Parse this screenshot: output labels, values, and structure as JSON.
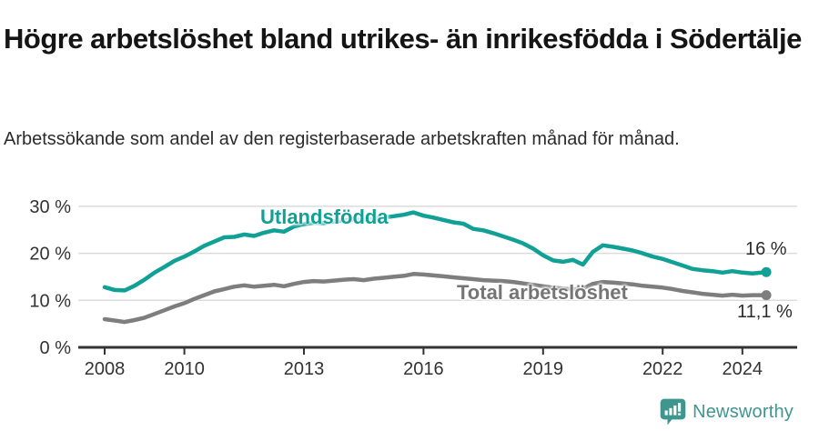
{
  "header": {
    "title": "Högre arbetslöshet bland utrikes- än inrikesfödda i Södertälje",
    "subtitle": "Arbetssökande som andel av den registerbaserade arbetskraften månad för månad."
  },
  "chart_data": {
    "type": "line",
    "title": "Högre arbetslöshet bland utrikes- än inrikesfödda i Södertälje",
    "subtitle": "Arbetssökande som andel av den registerbaserade arbetskraften månad för månad.",
    "xlabel": "",
    "ylabel": "",
    "grid": "horizontal",
    "legend_position": "inline-labels",
    "x_axis": {
      "ticks": [
        2008,
        2010,
        2013,
        2016,
        2019,
        2022,
        2024
      ],
      "range": [
        2008,
        2025.4
      ]
    },
    "y_axis": {
      "tick_values": [
        0,
        10,
        20,
        30
      ],
      "tick_labels": [
        "0 %",
        "10 %",
        "20 %",
        "30 %"
      ],
      "range": [
        0,
        30
      ],
      "unit": "%"
    },
    "colors": {
      "series0": "#11a096",
      "series1": "#7e7e7e",
      "axis": "#333333",
      "gridline": "#dcdcdc"
    },
    "series": [
      {
        "name": "Utlandsfödda",
        "color": "#11a096",
        "end_label": "16 %",
        "end_value": 16.0,
        "points": [
          [
            2008.0,
            12.8
          ],
          [
            2008.25,
            12.2
          ],
          [
            2008.5,
            12.1
          ],
          [
            2008.75,
            13.1
          ],
          [
            2009.0,
            14.4
          ],
          [
            2009.25,
            15.9
          ],
          [
            2009.5,
            17.1
          ],
          [
            2009.75,
            18.4
          ],
          [
            2010.0,
            19.3
          ],
          [
            2010.25,
            20.4
          ],
          [
            2010.5,
            21.6
          ],
          [
            2010.75,
            22.5
          ],
          [
            2011.0,
            23.4
          ],
          [
            2011.25,
            23.5
          ],
          [
            2011.5,
            24.0
          ],
          [
            2011.75,
            23.7
          ],
          [
            2012.0,
            24.4
          ],
          [
            2012.25,
            24.9
          ],
          [
            2012.5,
            24.6
          ],
          [
            2012.75,
            25.7
          ],
          [
            2013.0,
            26.2
          ],
          [
            2013.25,
            26.5
          ],
          [
            2013.5,
            26.4
          ],
          [
            2013.75,
            26.8
          ],
          [
            2014.0,
            27.0
          ],
          [
            2014.25,
            27.2
          ],
          [
            2014.5,
            27.1
          ],
          [
            2014.75,
            27.4
          ],
          [
            2015.0,
            27.6
          ],
          [
            2015.25,
            27.9
          ],
          [
            2015.5,
            28.2
          ],
          [
            2015.75,
            28.7
          ],
          [
            2016.0,
            28.0
          ],
          [
            2016.25,
            27.6
          ],
          [
            2016.5,
            27.1
          ],
          [
            2016.75,
            26.6
          ],
          [
            2017.0,
            26.3
          ],
          [
            2017.25,
            25.2
          ],
          [
            2017.5,
            24.9
          ],
          [
            2017.75,
            24.3
          ],
          [
            2018.0,
            23.6
          ],
          [
            2018.25,
            22.9
          ],
          [
            2018.5,
            22.1
          ],
          [
            2018.75,
            21.0
          ],
          [
            2019.0,
            19.6
          ],
          [
            2019.25,
            18.5
          ],
          [
            2019.5,
            18.2
          ],
          [
            2019.75,
            18.6
          ],
          [
            2020.0,
            17.6
          ],
          [
            2020.25,
            20.3
          ],
          [
            2020.5,
            21.7
          ],
          [
            2020.75,
            21.4
          ],
          [
            2021.0,
            21.0
          ],
          [
            2021.25,
            20.6
          ],
          [
            2021.5,
            20.0
          ],
          [
            2021.75,
            19.3
          ],
          [
            2022.0,
            18.8
          ],
          [
            2022.25,
            18.1
          ],
          [
            2022.5,
            17.4
          ],
          [
            2022.75,
            16.7
          ],
          [
            2023.0,
            16.4
          ],
          [
            2023.25,
            16.2
          ],
          [
            2023.5,
            15.9
          ],
          [
            2023.75,
            16.2
          ],
          [
            2024.0,
            15.9
          ],
          [
            2024.25,
            15.7
          ],
          [
            2024.6,
            16.0
          ]
        ]
      },
      {
        "name": "Total arbetslöshet",
        "color": "#7e7e7e",
        "end_label": "11,1 %",
        "end_value": 11.1,
        "points": [
          [
            2008.0,
            6.0
          ],
          [
            2008.25,
            5.7
          ],
          [
            2008.5,
            5.4
          ],
          [
            2008.75,
            5.8
          ],
          [
            2009.0,
            6.3
          ],
          [
            2009.25,
            7.1
          ],
          [
            2009.5,
            7.9
          ],
          [
            2009.75,
            8.7
          ],
          [
            2010.0,
            9.4
          ],
          [
            2010.25,
            10.3
          ],
          [
            2010.5,
            11.1
          ],
          [
            2010.75,
            11.9
          ],
          [
            2011.0,
            12.4
          ],
          [
            2011.25,
            12.9
          ],
          [
            2011.5,
            13.2
          ],
          [
            2011.75,
            12.9
          ],
          [
            2012.0,
            13.1
          ],
          [
            2012.25,
            13.3
          ],
          [
            2012.5,
            13.0
          ],
          [
            2012.75,
            13.5
          ],
          [
            2013.0,
            13.9
          ],
          [
            2013.25,
            14.1
          ],
          [
            2013.5,
            14.0
          ],
          [
            2013.75,
            14.2
          ],
          [
            2014.0,
            14.4
          ],
          [
            2014.25,
            14.5
          ],
          [
            2014.5,
            14.3
          ],
          [
            2014.75,
            14.6
          ],
          [
            2015.0,
            14.8
          ],
          [
            2015.25,
            15.0
          ],
          [
            2015.5,
            15.2
          ],
          [
            2015.75,
            15.6
          ],
          [
            2016.0,
            15.5
          ],
          [
            2016.25,
            15.3
          ],
          [
            2016.5,
            15.1
          ],
          [
            2016.75,
            14.9
          ],
          [
            2017.0,
            14.7
          ],
          [
            2017.25,
            14.5
          ],
          [
            2017.5,
            14.3
          ],
          [
            2017.75,
            14.2
          ],
          [
            2018.0,
            14.1
          ],
          [
            2018.25,
            13.9
          ],
          [
            2018.5,
            13.6
          ],
          [
            2018.75,
            13.3
          ],
          [
            2019.0,
            13.0
          ],
          [
            2019.25,
            12.7
          ],
          [
            2019.5,
            12.5
          ],
          [
            2019.75,
            12.3
          ],
          [
            2020.0,
            12.5
          ],
          [
            2020.25,
            13.5
          ],
          [
            2020.5,
            13.9
          ],
          [
            2020.75,
            13.8
          ],
          [
            2021.0,
            13.6
          ],
          [
            2021.25,
            13.4
          ],
          [
            2021.5,
            13.1
          ],
          [
            2021.75,
            12.9
          ],
          [
            2022.0,
            12.7
          ],
          [
            2022.25,
            12.4
          ],
          [
            2022.5,
            12.0
          ],
          [
            2022.75,
            11.7
          ],
          [
            2023.0,
            11.4
          ],
          [
            2023.25,
            11.2
          ],
          [
            2023.5,
            11.0
          ],
          [
            2023.75,
            11.2
          ],
          [
            2024.0,
            11.0
          ],
          [
            2024.25,
            11.1
          ],
          [
            2024.6,
            11.1
          ]
        ]
      }
    ]
  },
  "footer": {
    "brand": "Newsworthy",
    "brand_color": "#3f968f",
    "logo_icon": "speech-bubble-bar-chart-icon"
  }
}
